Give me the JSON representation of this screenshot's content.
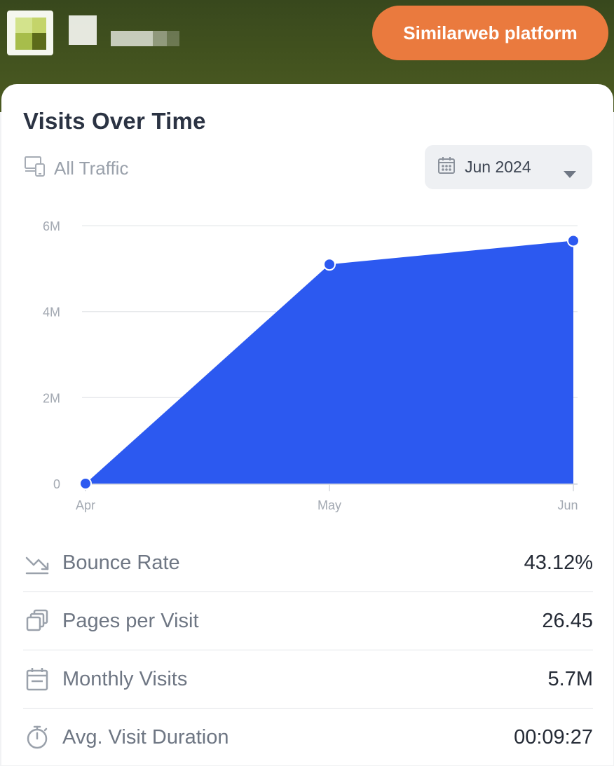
{
  "header": {
    "cta_label": "Similarweb platform"
  },
  "card": {
    "title": "Visits Over Time",
    "traffic_filter": "All Traffic",
    "date_selector": "Jun 2024"
  },
  "chart_data": {
    "type": "area",
    "categories": [
      "Apr",
      "May",
      "Jun"
    ],
    "values": [
      0,
      5.1,
      5.65
    ],
    "unit": "M",
    "yticks": [
      "0",
      "2M",
      "4M",
      "6M"
    ],
    "ylim": [
      0,
      6
    ],
    "grid": true,
    "color": "#2c59f0"
  },
  "metrics": [
    {
      "icon": "trend-arrow-icon",
      "label": "Bounce Rate",
      "value": "43.12%"
    },
    {
      "icon": "pages-stack-icon",
      "label": "Pages per Visit",
      "value": "26.45"
    },
    {
      "icon": "calendar-icon",
      "label": "Monthly Visits",
      "value": "5.7M"
    },
    {
      "icon": "stopwatch-icon",
      "label": "Avg. Visit Duration",
      "value": "00:09:27"
    }
  ],
  "colors": {
    "header_bg": "#3f4f1e",
    "cta": "#ea7a3e",
    "chart_fill": "#2c59f0",
    "title": "#2b3343"
  }
}
